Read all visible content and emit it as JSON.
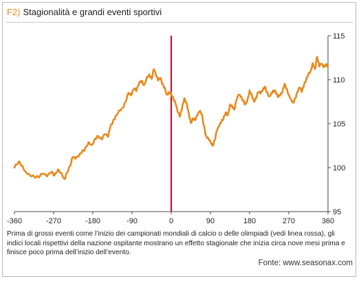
{
  "figure": {
    "prefix": "F2)",
    "title": "Stagionalità e grandi eventi sportivi",
    "caption": "Prima di grossi eventi come l’inizio dei campionati mondiali di calcio o delle olimpiadi (vedi linea rossa), gli indici locali rispettivi della nazione ospitante mostrano un effetto stagionale che inizia circa nove mesi prima e finisce poco prima dell’inizio dell’evento.",
    "source": "Fonte: www.seasonax.com"
  },
  "colors": {
    "line": "#e8891c",
    "event_line": "#d0021b",
    "prefix": "#e8891c",
    "axis": "#444444"
  },
  "chart_data": {
    "type": "line",
    "title": "",
    "xlabel": "",
    "ylabel": "",
    "xlim": [
      -360,
      360
    ],
    "ylim": [
      95,
      115
    ],
    "x_ticks": [
      -360,
      -270,
      -180,
      -90,
      0,
      90,
      180,
      270,
      360
    ],
    "x_tick_labels": [
      "-360",
      "-270",
      "-180",
      "-90",
      "0",
      "90",
      "180",
      "270",
      "360"
    ],
    "y_ticks": [
      95,
      100,
      105,
      110,
      115
    ],
    "y_tick_labels": [
      "95",
      "100",
      "105",
      "110",
      "115"
    ],
    "grid": "off",
    "legend": "none",
    "event_line_x": 0,
    "series": [
      {
        "x": [
          -360,
          -350,
          -342,
          -335,
          -325,
          -315,
          -305,
          -295,
          -285,
          -275,
          -268,
          -260,
          -252,
          -245,
          -240,
          -232,
          -226,
          -220,
          -212,
          -205,
          -198,
          -190,
          -182,
          -175,
          -168,
          -160,
          -152,
          -145,
          -140,
          -134,
          -128,
          -120,
          -112,
          -105,
          -98,
          -92,
          -85,
          -80,
          -74,
          -68,
          -62,
          -56,
          -50,
          -45,
          -40,
          -35,
          -30,
          -25,
          -20,
          -15,
          -10,
          -5,
          0,
          5,
          10,
          15,
          20,
          25,
          30,
          35,
          40,
          45,
          50,
          55,
          60,
          65,
          70,
          75,
          80,
          85,
          90,
          95,
          100,
          105,
          110,
          115,
          120,
          125,
          130,
          135,
          140,
          145,
          150,
          155,
          160,
          165,
          170,
          175,
          180,
          185,
          190,
          195,
          200,
          205,
          210,
          215,
          220,
          225,
          230,
          235,
          240,
          245,
          250,
          255,
          260,
          265,
          270,
          275,
          280,
          285,
          290,
          295,
          300,
          305,
          310,
          315,
          320,
          325,
          330,
          335,
          340,
          345,
          350,
          355,
          360
        ],
        "values": [
          100.0,
          100.7,
          100.2,
          99.6,
          99.2,
          99.0,
          98.9,
          99.3,
          99.0,
          99.5,
          99.1,
          99.8,
          99.4,
          98.7,
          99.4,
          100.2,
          101.2,
          101.0,
          101.3,
          101.8,
          102.1,
          102.9,
          102.6,
          103.3,
          103.6,
          103.2,
          103.8,
          103.5,
          104.6,
          105.2,
          105.8,
          106.5,
          106.8,
          107.5,
          108.5,
          108.2,
          109.0,
          108.7,
          109.6,
          109.9,
          109.4,
          110.3,
          110.6,
          110.1,
          111.2,
          110.5,
          109.9,
          110.2,
          109.5,
          109.1,
          108.3,
          108.6,
          108.4,
          107.8,
          107.3,
          106.3,
          105.8,
          106.8,
          107.9,
          107.4,
          106.3,
          105.1,
          105.6,
          105.4,
          105.9,
          106.4,
          106.1,
          104.8,
          103.6,
          103.4,
          103.0,
          102.5,
          103.1,
          104.2,
          104.7,
          105.2,
          105.6,
          106.3,
          106.0,
          107.2,
          107.0,
          106.6,
          107.7,
          108.3,
          108.0,
          107.6,
          107.2,
          107.7,
          108.8,
          108.3,
          107.5,
          107.9,
          108.6,
          108.4,
          108.8,
          109.2,
          108.6,
          108.1,
          108.5,
          108.8,
          108.6,
          108.0,
          108.2,
          108.5,
          109.5,
          109.0,
          108.3,
          107.8,
          107.4,
          107.9,
          108.6,
          109.1,
          108.6,
          109.4,
          110.0,
          110.7,
          111.0,
          111.9,
          111.2,
          112.6,
          111.5,
          111.8,
          111.4,
          111.7,
          111.6
        ]
      }
    ]
  }
}
